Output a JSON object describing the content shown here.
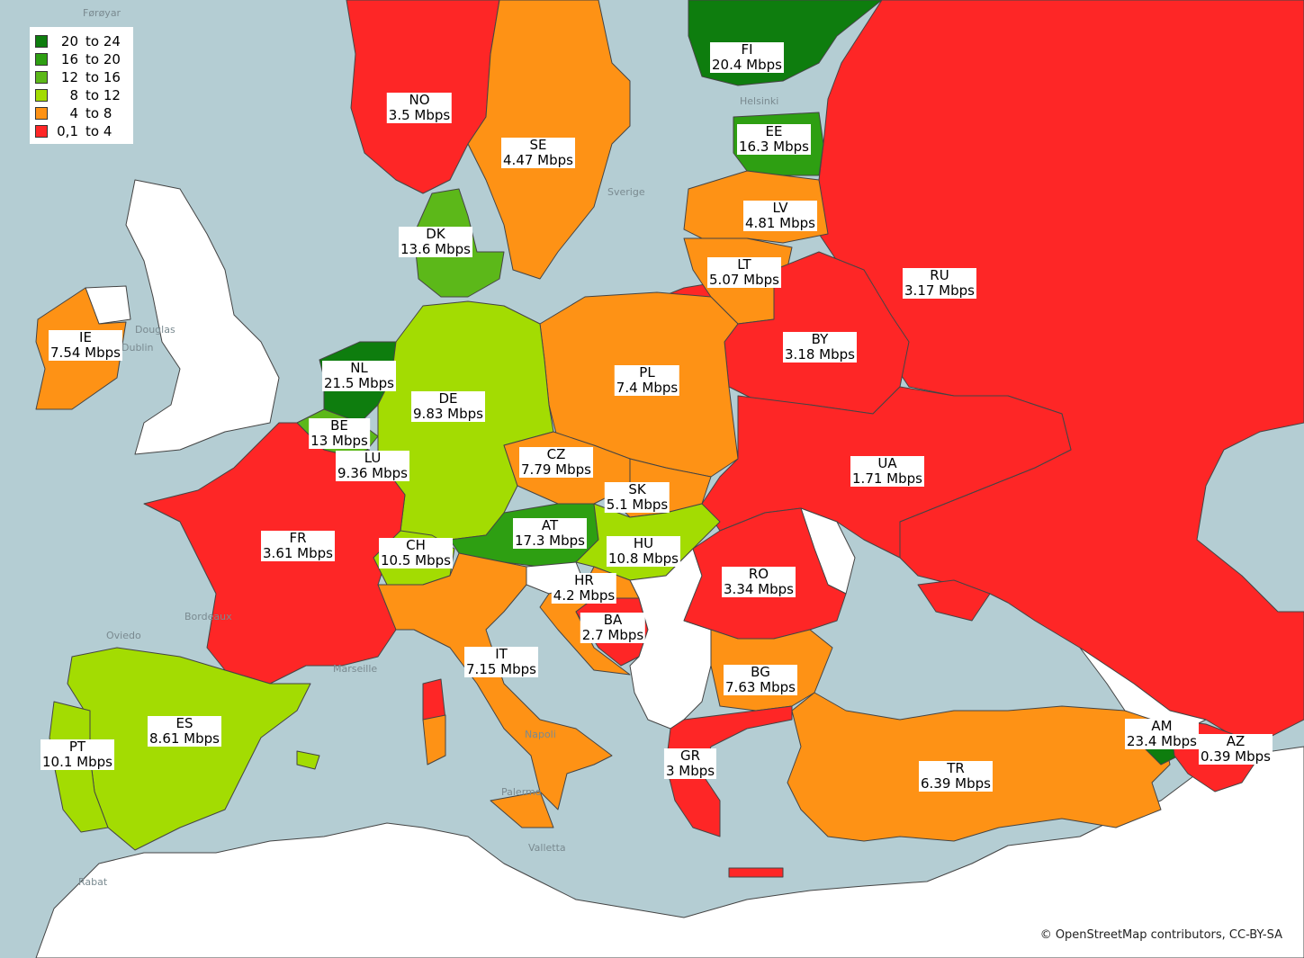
{
  "colors": {
    "sea": "#b4cdd3",
    "c20_24": "#0e7d0e",
    "c16_20": "#2e9f12",
    "c12_16": "#5cb819",
    "c8_12": "#a3dc02",
    "c4_8": "#fe9215",
    "c0_4": "#fe2626",
    "nodata": "#ffffff"
  },
  "legend": [
    {
      "from": "20",
      "to": "to 24",
      "color": "#0e7d0e"
    },
    {
      "from": "16",
      "to": "to 20",
      "color": "#2e9f12"
    },
    {
      "from": "12",
      "to": "to 16",
      "color": "#5cb819"
    },
    {
      "from": "8",
      "to": "to 12",
      "color": "#a3dc02"
    },
    {
      "from": "4",
      "to": "to  8",
      "color": "#fe9215"
    },
    {
      "from": "0,1",
      "to": "to  4",
      "color": "#fe2626"
    }
  ],
  "countries": [
    {
      "code": "NO",
      "value": "3.5 Mbps"
    },
    {
      "code": "SE",
      "value": "4.47 Mbps"
    },
    {
      "code": "FI",
      "value": "20.4 Mbps"
    },
    {
      "code": "EE",
      "value": "16.3 Mbps"
    },
    {
      "code": "LV",
      "value": "4.81 Mbps"
    },
    {
      "code": "LT",
      "value": "5.07 Mbps"
    },
    {
      "code": "RU",
      "value": "3.17 Mbps"
    },
    {
      "code": "BY",
      "value": "3.18 Mbps"
    },
    {
      "code": "DK",
      "value": "13.6 Mbps"
    },
    {
      "code": "IE",
      "value": "7.54 Mbps"
    },
    {
      "code": "NL",
      "value": "21.5 Mbps"
    },
    {
      "code": "BE",
      "value": "13 Mbps"
    },
    {
      "code": "LU",
      "value": "9.36 Mbps"
    },
    {
      "code": "DE",
      "value": "9.83 Mbps"
    },
    {
      "code": "PL",
      "value": "7.4 Mbps"
    },
    {
      "code": "CZ",
      "value": "7.79 Mbps"
    },
    {
      "code": "SK",
      "value": "5.1 Mbps"
    },
    {
      "code": "UA",
      "value": "1.71 Mbps"
    },
    {
      "code": "AT",
      "value": "17.3 Mbps"
    },
    {
      "code": "HU",
      "value": "10.8 Mbps"
    },
    {
      "code": "CH",
      "value": "10.5 Mbps"
    },
    {
      "code": "FR",
      "value": "3.61 Mbps"
    },
    {
      "code": "HR",
      "value": "4.2 Mbps"
    },
    {
      "code": "RO",
      "value": "3.34 Mbps"
    },
    {
      "code": "BA",
      "value": "2.7 Mbps"
    },
    {
      "code": "IT",
      "value": "7.15 Mbps"
    },
    {
      "code": "BG",
      "value": "7.63 Mbps"
    },
    {
      "code": "ES",
      "value": "8.61 Mbps"
    },
    {
      "code": "PT",
      "value": "10.1 Mbps"
    },
    {
      "code": "GR",
      "value": "3 Mbps"
    },
    {
      "code": "AM",
      "value": "23.4 Mbps"
    },
    {
      "code": "AZ",
      "value": "0.39 Mbps"
    },
    {
      "code": "TR",
      "value": "6.39 Mbps"
    }
  ],
  "places": [
    "Førøyar",
    "Helsinki",
    "Douglas",
    "Dublin",
    "Bordeaux",
    "Oviedo",
    "Marseille",
    "Palermo",
    "Valletta",
    "Rabat",
    "Napoli",
    "Sverige"
  ],
  "attribution": "© OpenStreetMap contributors, CC-BY-SA"
}
